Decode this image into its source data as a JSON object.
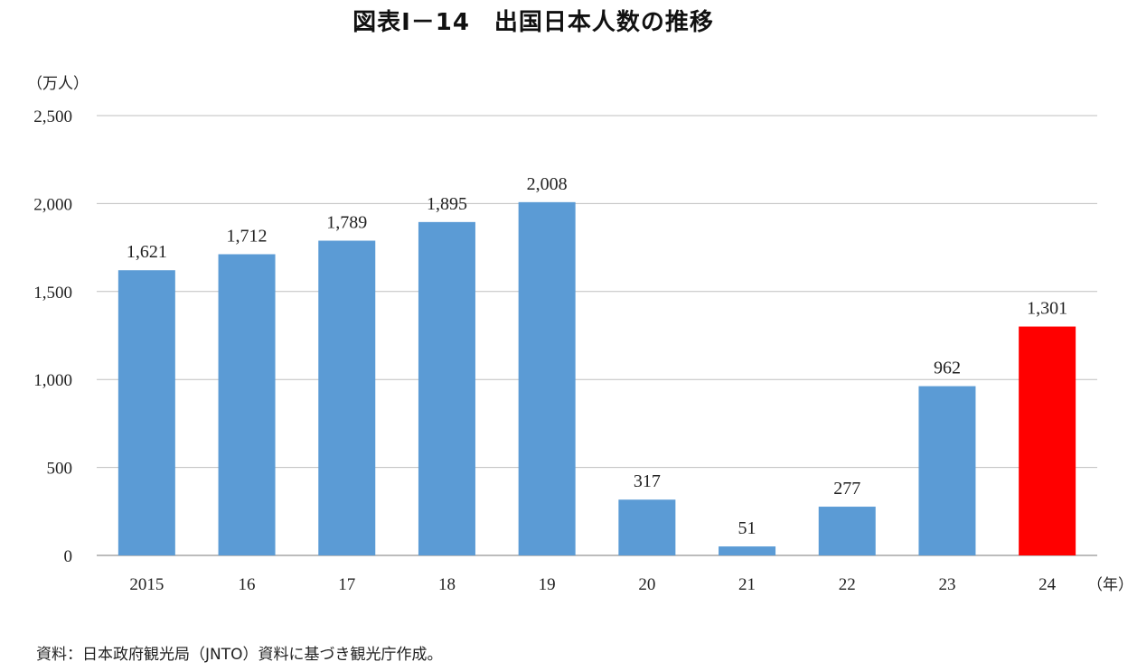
{
  "chart_data": {
    "type": "bar",
    "title": "図表Ⅰ－14　出国日本人数の推移",
    "ylabel": "（万人）",
    "xlabel": "（年）",
    "categories": [
      "2015",
      "16",
      "17",
      "18",
      "19",
      "20",
      "21",
      "22",
      "23",
      "24"
    ],
    "values": [
      1621,
      1712,
      1789,
      1895,
      2008,
      317,
      51,
      277,
      962,
      1301
    ],
    "value_labels": [
      "1,621",
      "1,712",
      "1,789",
      "1,895",
      "2,008",
      "317",
      "51",
      "277",
      "962",
      "1,301"
    ],
    "ylim": [
      0,
      2500
    ],
    "yticks": [
      0,
      500,
      1000,
      1500,
      2000,
      2500
    ],
    "ytick_labels": [
      "0",
      "500",
      "1,000",
      "1,500",
      "2,000",
      "2,500"
    ],
    "grid": true,
    "colors": {
      "bar": "#5b9bd5",
      "highlight_bar": "#ff0000",
      "grid": "#bfbfbf",
      "axis": "#a6a6a6"
    },
    "highlight_category": "24",
    "source": "資料：日本政府観光局（JNTO）資料に基づき観光庁作成。"
  }
}
